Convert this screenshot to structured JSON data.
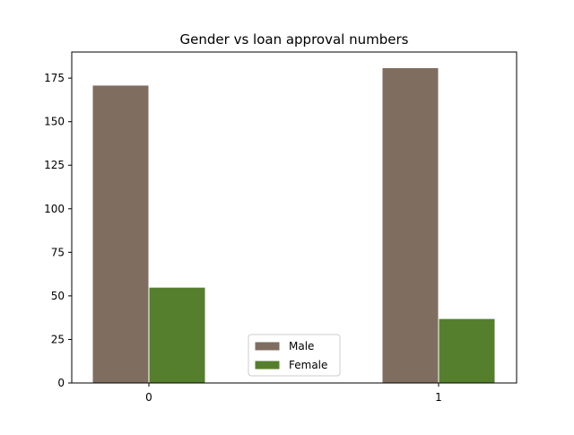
{
  "chart_data": {
    "type": "bar",
    "title": "Gender vs loan approval numbers",
    "xlabel": "",
    "ylabel": "",
    "categories": [
      "0",
      "1"
    ],
    "series": [
      {
        "name": "Male",
        "values": [
          171,
          181
        ],
        "color": "#7f6d5f"
      },
      {
        "name": "Female",
        "values": [
          55,
          37
        ],
        "color": "#557f2d"
      }
    ],
    "ylim": [
      0,
      190
    ],
    "yticks": [
      "0",
      "25",
      "50",
      "75",
      "100",
      "125",
      "150",
      "175"
    ],
    "grid": false,
    "legend_position": "lower-center"
  }
}
